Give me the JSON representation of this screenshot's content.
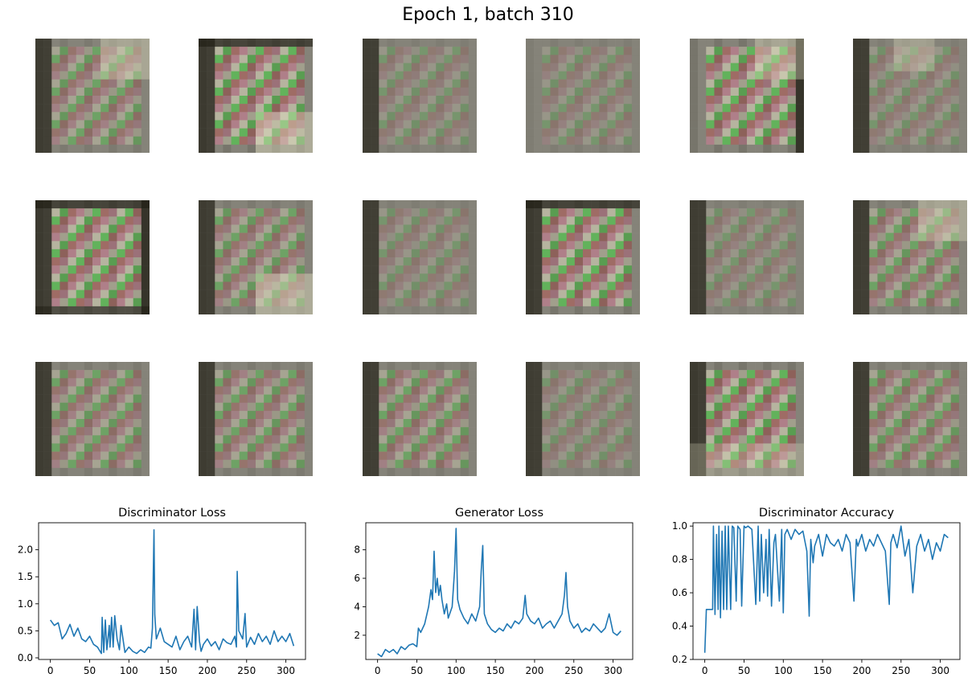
{
  "figure": {
    "title": "Epoch 1, batch 310"
  },
  "samples": {
    "rows": 3,
    "cols": 6,
    "colors": {
      "base": "#858379",
      "dark": "#1c1a10",
      "green": "#3ee23c",
      "red": "#d83a3a",
      "pink": "#d97a9a",
      "light": "#e8e6c6"
    },
    "images": [
      {
        "pattern": "medium",
        "edge": "left",
        "bright": "top-right"
      },
      {
        "pattern": "strong",
        "edge": "top-left",
        "bright": "bottom-right"
      },
      {
        "pattern": "faint",
        "edge": "left",
        "bright": "none"
      },
      {
        "pattern": "faint",
        "edge": "none",
        "bright": "none"
      },
      {
        "pattern": "strong",
        "edge": "right",
        "bright": "top-right"
      },
      {
        "pattern": "faint",
        "edge": "left",
        "bright": "top-center"
      },
      {
        "pattern": "strong",
        "edge": "all",
        "bright": "none"
      },
      {
        "pattern": "medium",
        "edge": "left",
        "bright": "bottom-right"
      },
      {
        "pattern": "faint",
        "edge": "left",
        "bright": "none"
      },
      {
        "pattern": "strong",
        "edge": "top-left",
        "bright": "none"
      },
      {
        "pattern": "faint",
        "edge": "left",
        "bright": "none"
      },
      {
        "pattern": "medium",
        "edge": "left",
        "bright": "top-right"
      },
      {
        "pattern": "medium",
        "edge": "left",
        "bright": "none"
      },
      {
        "pattern": "medium",
        "edge": "left",
        "bright": "none"
      },
      {
        "pattern": "medium",
        "edge": "left",
        "bright": "none"
      },
      {
        "pattern": "faint",
        "edge": "left",
        "bright": "none"
      },
      {
        "pattern": "strong",
        "edge": "left",
        "bright": "bottom"
      },
      {
        "pattern": "medium",
        "edge": "left",
        "bright": "none"
      }
    ]
  },
  "chart_data": [
    {
      "type": "line",
      "title": "Discriminator Loss",
      "xlabel": "",
      "ylabel": "",
      "xlim": [
        -15,
        325
      ],
      "ylim": [
        -0.03,
        2.5
      ],
      "xticks": [
        0,
        50,
        100,
        150,
        200,
        250,
        300
      ],
      "yticks": [
        0.0,
        0.5,
        1.0,
        1.5,
        2.0
      ],
      "ytick_labels": [
        "0.0",
        "0.5",
        "1.0",
        "1.5",
        "2.0"
      ],
      "grid": false,
      "color": "#1f77b4",
      "x": [
        0,
        5,
        10,
        15,
        20,
        25,
        30,
        35,
        40,
        45,
        50,
        55,
        60,
        65,
        66,
        68,
        70,
        72,
        75,
        76,
        78,
        80,
        82,
        85,
        88,
        90,
        95,
        100,
        105,
        110,
        115,
        120,
        125,
        128,
        130,
        132,
        133,
        135,
        140,
        145,
        150,
        155,
        160,
        165,
        170,
        175,
        180,
        183,
        185,
        187,
        190,
        192,
        195,
        200,
        205,
        210,
        215,
        220,
        225,
        230,
        235,
        237,
        238,
        240,
        245,
        248,
        250,
        255,
        260,
        265,
        270,
        275,
        280,
        285,
        290,
        295,
        300,
        305,
        310
      ],
      "values": [
        0.7,
        0.6,
        0.65,
        0.35,
        0.45,
        0.62,
        0.4,
        0.55,
        0.35,
        0.3,
        0.4,
        0.25,
        0.2,
        0.08,
        0.75,
        0.1,
        0.7,
        0.15,
        0.6,
        0.2,
        0.75,
        0.2,
        0.78,
        0.35,
        0.15,
        0.6,
        0.1,
        0.2,
        0.12,
        0.08,
        0.15,
        0.1,
        0.2,
        0.18,
        0.55,
        2.37,
        0.8,
        0.35,
        0.55,
        0.3,
        0.25,
        0.2,
        0.4,
        0.15,
        0.3,
        0.4,
        0.2,
        0.9,
        0.15,
        0.95,
        0.3,
        0.12,
        0.25,
        0.35,
        0.22,
        0.3,
        0.15,
        0.35,
        0.28,
        0.25,
        0.4,
        0.2,
        1.6,
        0.5,
        0.35,
        0.82,
        0.2,
        0.38,
        0.25,
        0.45,
        0.3,
        0.4,
        0.25,
        0.5,
        0.3,
        0.4,
        0.3,
        0.45,
        0.22
      ]
    },
    {
      "type": "line",
      "title": "Generator Loss",
      "xlabel": "",
      "ylabel": "",
      "xlim": [
        -15,
        325
      ],
      "ylim": [
        0.3,
        9.9
      ],
      "xticks": [
        0,
        50,
        100,
        150,
        200,
        250,
        300
      ],
      "yticks": [
        2,
        4,
        6,
        8
      ],
      "ytick_labels": [
        "2",
        "4",
        "6",
        "8"
      ],
      "grid": false,
      "color": "#1f77b4",
      "x": [
        0,
        5,
        10,
        15,
        20,
        25,
        30,
        35,
        40,
        45,
        50,
        52,
        55,
        60,
        65,
        68,
        70,
        72,
        74,
        76,
        78,
        80,
        82,
        85,
        88,
        90,
        95,
        98,
        100,
        102,
        105,
        110,
        115,
        120,
        125,
        130,
        132,
        134,
        136,
        140,
        145,
        150,
        155,
        160,
        165,
        170,
        175,
        180,
        185,
        188,
        190,
        195,
        200,
        205,
        210,
        215,
        220,
        225,
        230,
        235,
        238,
        240,
        242,
        245,
        250,
        255,
        260,
        265,
        270,
        275,
        280,
        285,
        290,
        295,
        300,
        305,
        310
      ],
      "values": [
        0.7,
        0.5,
        1.0,
        0.8,
        1.0,
        0.7,
        1.2,
        1.0,
        1.3,
        1.4,
        1.2,
        2.5,
        2.2,
        2.8,
        4.0,
        5.2,
        4.5,
        7.9,
        5.0,
        6.0,
        4.8,
        5.5,
        4.5,
        3.5,
        4.2,
        3.2,
        4.0,
        6.5,
        9.5,
        4.5,
        3.8,
        3.2,
        2.8,
        3.5,
        3.0,
        4.0,
        6.5,
        8.3,
        3.5,
        2.8,
        2.4,
        2.2,
        2.5,
        2.3,
        2.8,
        2.5,
        3.0,
        2.8,
        3.2,
        4.8,
        3.5,
        3.0,
        2.8,
        3.2,
        2.5,
        2.8,
        3.0,
        2.5,
        3.0,
        3.5,
        4.8,
        6.4,
        4.0,
        3.0,
        2.5,
        2.8,
        2.2,
        2.5,
        2.3,
        2.8,
        2.5,
        2.2,
        2.5,
        3.5,
        2.2,
        2.0,
        2.3
      ]
    },
    {
      "type": "line",
      "title": "Discriminator Accuracy",
      "xlabel": "",
      "ylabel": "",
      "xlim": [
        -15,
        325
      ],
      "ylim": [
        0.2,
        1.02
      ],
      "xticks": [
        0,
        50,
        100,
        150,
        200,
        250,
        300
      ],
      "yticks": [
        0.2,
        0.4,
        0.6,
        0.8,
        1.0
      ],
      "ytick_labels": [
        "0.2",
        "0.4",
        "0.6",
        "0.8",
        "1.0"
      ],
      "grid": false,
      "color": "#1f77b4",
      "x": [
        0,
        2,
        5,
        8,
        10,
        11,
        13,
        15,
        17,
        18,
        20,
        22,
        24,
        26,
        28,
        30,
        33,
        35,
        37,
        40,
        42,
        45,
        47,
        50,
        52,
        55,
        60,
        65,
        68,
        70,
        72,
        75,
        78,
        80,
        82,
        85,
        88,
        90,
        95,
        98,
        100,
        102,
        105,
        110,
        115,
        120,
        125,
        130,
        133,
        135,
        138,
        140,
        145,
        150,
        155,
        160,
        165,
        170,
        175,
        180,
        185,
        190,
        193,
        195,
        200,
        205,
        210,
        215,
        220,
        225,
        230,
        235,
        237,
        240,
        245,
        250,
        255,
        260,
        265,
        270,
        275,
        280,
        285,
        290,
        295,
        300,
        305,
        310
      ],
      "values": [
        0.24,
        0.5,
        0.5,
        0.5,
        0.5,
        1.0,
        0.47,
        0.95,
        0.5,
        1.0,
        0.45,
        0.97,
        0.5,
        1.0,
        0.5,
        1.0,
        0.5,
        1.0,
        0.99,
        0.55,
        1.0,
        0.98,
        0.52,
        1.0,
        0.99,
        1.0,
        0.98,
        0.53,
        1.0,
        0.55,
        0.95,
        0.6,
        0.92,
        0.58,
        0.98,
        0.52,
        0.9,
        0.95,
        0.55,
        0.98,
        0.48,
        0.95,
        0.98,
        0.92,
        0.98,
        0.95,
        0.97,
        0.85,
        0.46,
        0.92,
        0.78,
        0.88,
        0.95,
        0.82,
        0.95,
        0.9,
        0.88,
        0.92,
        0.85,
        0.95,
        0.9,
        0.55,
        0.92,
        0.88,
        0.95,
        0.85,
        0.92,
        0.88,
        0.95,
        0.9,
        0.85,
        0.53,
        0.9,
        0.95,
        0.87,
        1.0,
        0.82,
        0.92,
        0.6,
        0.88,
        0.95,
        0.85,
        0.92,
        0.8,
        0.9,
        0.85,
        0.95,
        0.93
      ]
    }
  ]
}
